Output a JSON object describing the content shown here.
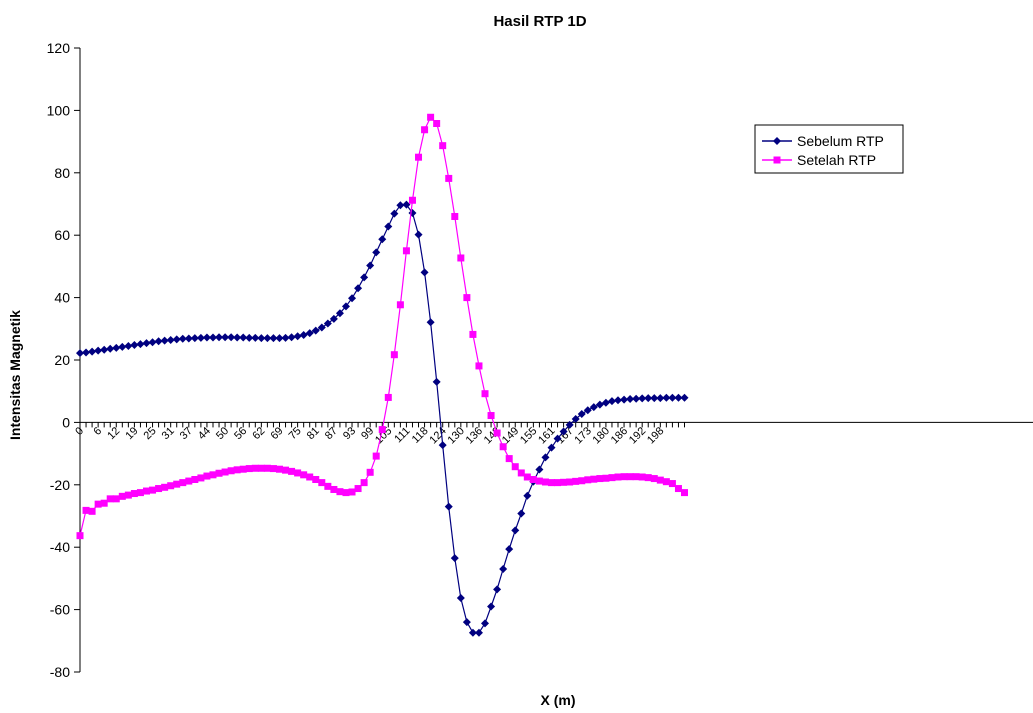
{
  "chart_data": {
    "type": "line",
    "title": "Hasil RTP 1D",
    "xlabel": "X (m)",
    "ylabel": "Intensitas Magnetik",
    "ylim": [
      -80,
      120
    ],
    "yticks": [
      -80,
      -60,
      -40,
      -20,
      0,
      20,
      40,
      60,
      80,
      100,
      120
    ],
    "x_tick_labels": [
      "0",
      "6",
      "12",
      "19",
      "25",
      "31",
      "37",
      "44",
      "50",
      "56",
      "62",
      "69",
      "75",
      "81",
      "87",
      "93",
      "99",
      "105",
      "111",
      "118",
      "124",
      "130",
      "136",
      "143",
      "149",
      "155",
      "161",
      "167",
      "173",
      "180",
      "186",
      "192",
      "198"
    ],
    "x_tick_every": 2,
    "legend_position": "top-right",
    "grid": false,
    "series": [
      {
        "name": "Sebelum RTP",
        "color": "#000080",
        "marker": "diamond",
        "values": [
          22.2,
          22.4,
          22.7,
          23.0,
          23.3,
          23.6,
          23.9,
          24.2,
          24.5,
          24.8,
          25.1,
          25.4,
          25.7,
          26.0,
          26.2,
          26.4,
          26.6,
          26.8,
          26.9,
          27.0,
          27.1,
          27.2,
          27.2,
          27.3,
          27.3,
          27.3,
          27.2,
          27.2,
          27.1,
          27.1,
          27.0,
          27.0,
          27.0,
          27.0,
          27.1,
          27.3,
          27.6,
          28.0,
          28.6,
          29.4,
          30.4,
          31.7,
          33.2,
          35.0,
          37.2,
          39.8,
          43.0,
          46.5,
          50.3,
          54.5,
          58.7,
          62.8,
          66.9,
          69.6,
          69.8,
          67.1,
          60.2,
          48.1,
          32.1,
          13.0,
          -7.3,
          -27.0,
          -43.5,
          -56.3,
          -64.0,
          -67.4,
          -67.4,
          -64.4,
          -59.0,
          -53.5,
          -47.0,
          -40.6,
          -34.6,
          -29.2,
          -23.5,
          -19.0,
          -15.1,
          -11.2,
          -8.1,
          -5.2,
          -2.9,
          -0.8,
          1.1,
          2.7,
          3.9,
          4.9,
          5.7,
          6.3,
          6.8,
          7.1,
          7.3,
          7.5,
          7.6,
          7.7,
          7.8,
          7.8,
          7.8,
          7.9,
          7.9,
          7.9,
          7.9
        ]
      },
      {
        "name": "Setelah RTP",
        "color": "#ff00ff",
        "marker": "square",
        "values": [
          -36.3,
          -28.2,
          -28.5,
          -26.2,
          -25.9,
          -24.5,
          -24.5,
          -23.7,
          -23.3,
          -22.8,
          -22.5,
          -22.0,
          -21.7,
          -21.2,
          -20.8,
          -20.3,
          -19.8,
          -19.3,
          -18.8,
          -18.3,
          -17.8,
          -17.2,
          -16.8,
          -16.3,
          -15.9,
          -15.5,
          -15.2,
          -15.0,
          -14.8,
          -14.7,
          -14.7,
          -14.7,
          -14.8,
          -15.0,
          -15.3,
          -15.7,
          -16.2,
          -16.8,
          -17.5,
          -18.3,
          -19.3,
          -20.5,
          -21.5,
          -22.2,
          -22.5,
          -22.3,
          -21.2,
          -19.3,
          -16.0,
          -10.8,
          -2.3,
          8.0,
          21.7,
          37.7,
          55.0,
          71.2,
          85.0,
          93.8,
          97.8,
          95.8,
          88.7,
          78.2,
          66.0,
          52.7,
          40.0,
          28.2,
          18.1,
          9.2,
          2.2,
          -3.4,
          -7.8,
          -11.6,
          -14.2,
          -16.2,
          -17.5,
          -18.3,
          -18.8,
          -19.1,
          -19.3,
          -19.3,
          -19.2,
          -19.1,
          -18.9,
          -18.7,
          -18.4,
          -18.2,
          -18.0,
          -17.9,
          -17.7,
          -17.5,
          -17.4,
          -17.4,
          -17.4,
          -17.5,
          -17.7,
          -18.0,
          -18.5,
          -19.0,
          -19.6,
          -21.2,
          -22.5
        ]
      }
    ]
  }
}
